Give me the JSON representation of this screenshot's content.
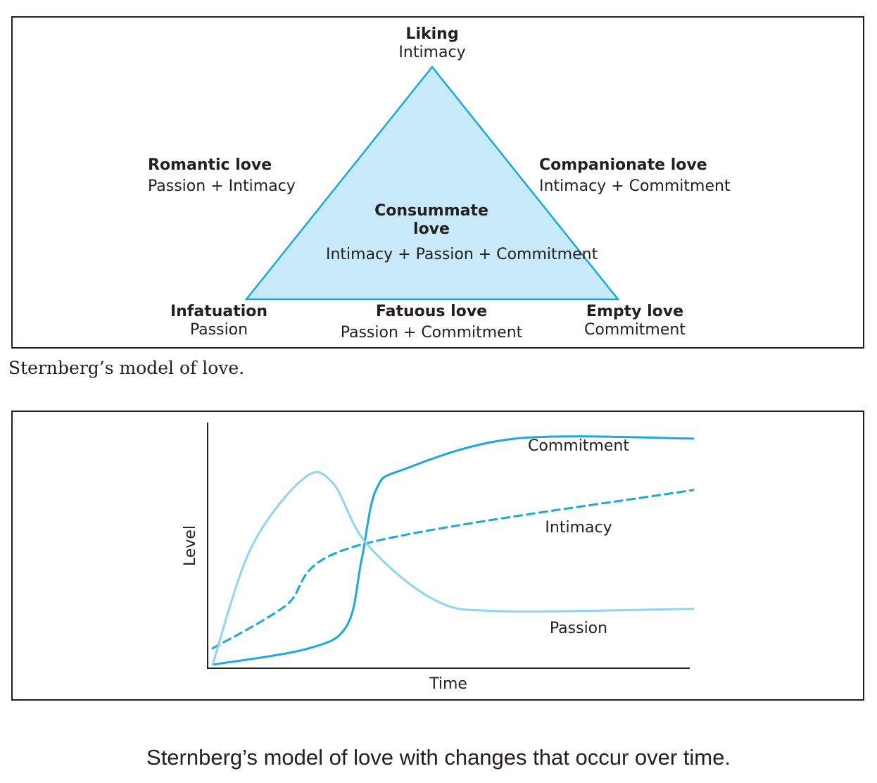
{
  "triangle": {
    "top_vertex": {
      "title": "Liking",
      "subtitle": "Intimacy"
    },
    "left_side": {
      "title": "Romantic love",
      "subtitle": "Passion + Intimacy"
    },
    "right_side": {
      "title": "Companionate love",
      "subtitle": "Intimacy + Commitment"
    },
    "center": {
      "title_line1": "Consummate",
      "title_line2": "love",
      "subtitle": "Intimacy + Passion + Commitment"
    },
    "bottom_left_vertex": {
      "title": "Infatuation",
      "subtitle": "Passion"
    },
    "bottom_side": {
      "title": "Fatuous love",
      "subtitle": "Passion + Commitment"
    },
    "bottom_right_vertex": {
      "title": "Empty love",
      "subtitle": "Commitment"
    },
    "fill_color": "#c7e9f8",
    "stroke_color": "#1ba8e0"
  },
  "caption_top": "Sternberg’s model of love.",
  "caption_bottom": "Sternberg’s model of love with changes that occur over time.",
  "chart_data": {
    "type": "line",
    "xlabel": "Time",
    "ylabel": "Level",
    "series": [
      {
        "name": "Commitment",
        "style": "solid",
        "color": "#1ba8e0",
        "points": [
          [
            0,
            0
          ],
          [
            0.2,
            0.07
          ],
          [
            0.28,
            0.17
          ],
          [
            0.31,
            0.45
          ],
          [
            0.34,
            0.75
          ],
          [
            0.4,
            0.84
          ],
          [
            0.63,
            0.97
          ],
          [
            1.0,
            0.97
          ]
        ]
      },
      {
        "name": "Intimacy",
        "style": "dashed",
        "color": "#1ba8e0",
        "points": [
          [
            0,
            0.07
          ],
          [
            0.15,
            0.25
          ],
          [
            0.3,
            0.51
          ],
          [
            1.0,
            0.75
          ]
        ]
      },
      {
        "name": "Passion",
        "style": "solid",
        "color": "#8fd4f2",
        "points": [
          [
            0,
            0
          ],
          [
            0.08,
            0.5
          ],
          [
            0.19,
            0.8
          ],
          [
            0.25,
            0.78
          ],
          [
            0.32,
            0.52
          ],
          [
            0.46,
            0.28
          ],
          [
            0.6,
            0.23
          ],
          [
            1.0,
            0.24
          ]
        ]
      }
    ]
  }
}
